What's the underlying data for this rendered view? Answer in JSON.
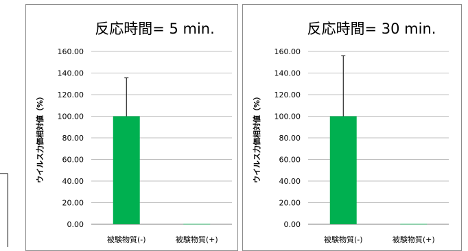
{
  "chart_data": [
    {
      "type": "bar",
      "title": "反応時間= 5 min.",
      "ylabel": "ウイルス力価相対値（%）",
      "categories": [
        "被験物質(-)",
        "被験物質(+)"
      ],
      "values": [
        100.0,
        0.3
      ],
      "error_plus": [
        35.5,
        0
      ],
      "ylim": [
        0,
        160
      ],
      "yticks": [
        "0.00",
        "20.00",
        "40.00",
        "60.00",
        "80.00",
        "100.00",
        "120.00",
        "140.00",
        "160.00"
      ],
      "grid": true,
      "legend": "none",
      "bar_color": "#00b050"
    },
    {
      "type": "bar",
      "title": "反応時間= 30 min.",
      "ylabel": "ウイルス力価相対値（%）",
      "categories": [
        "被験物質(-)",
        "被験物質(+)"
      ],
      "values": [
        100.0,
        0.3
      ],
      "error_plus": [
        56.0,
        0
      ],
      "ylim": [
        0,
        160
      ],
      "yticks": [
        "0.00",
        "20.00",
        "40.00",
        "60.00",
        "80.00",
        "100.00",
        "120.00",
        "140.00",
        "160.00"
      ],
      "grid": true,
      "legend": "none",
      "bar_color": "#00b050"
    }
  ]
}
